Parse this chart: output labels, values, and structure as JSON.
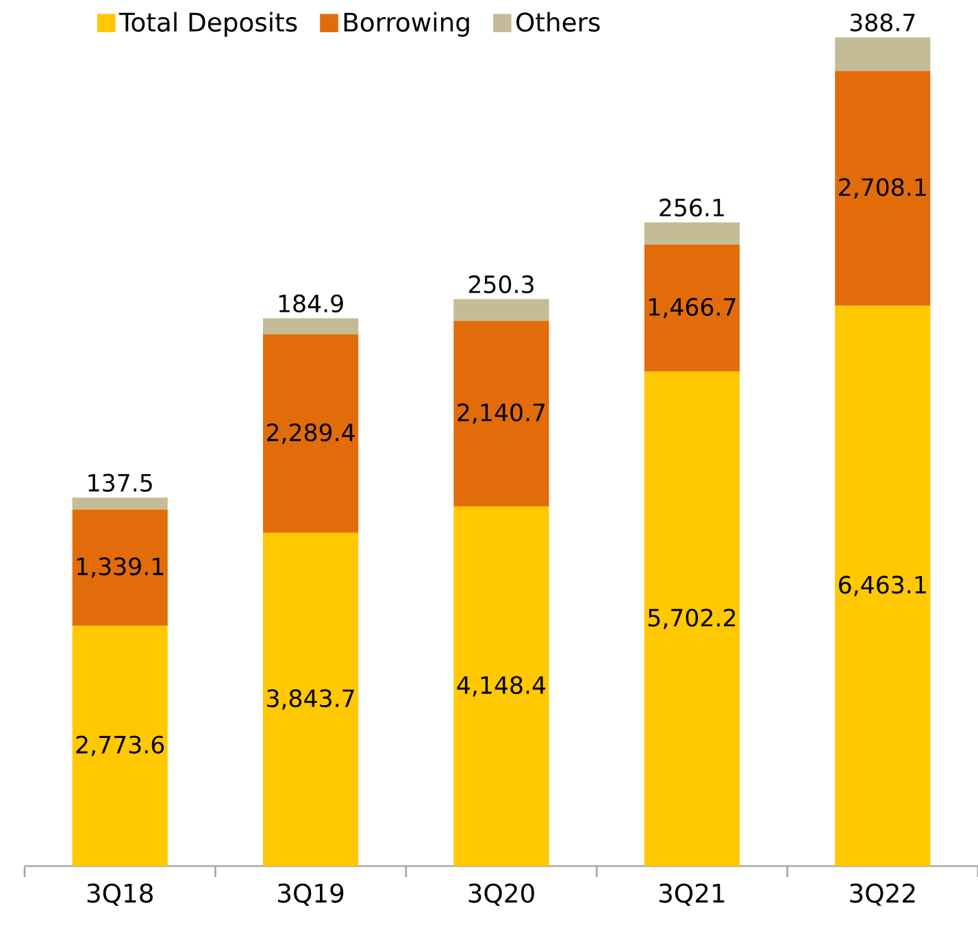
{
  "chart_data": {
    "type": "bar",
    "stacked": true,
    "legend": "top left",
    "categories": [
      "3Q18",
      "3Q19",
      "3Q20",
      "3Q21",
      "3Q22"
    ],
    "series": [
      {
        "name": "Total Deposits",
        "color": "#ffc800",
        "values": [
          2773.6,
          3843.7,
          4148.4,
          5702.2,
          6463.1
        ],
        "value_labels": [
          "2,773.6",
          "3,843.7",
          "4,148.4",
          "5,702.2",
          "6,463.1"
        ]
      },
      {
        "name": "Borrowing",
        "color": "#e36c0a",
        "values": [
          1339.1,
          2289.4,
          2140.7,
          1466.7,
          2708.1
        ],
        "value_labels": [
          "1,339.1",
          "2,289.4",
          "2,140.7",
          "1,466.7",
          "2,708.1"
        ]
      },
      {
        "name": "Others",
        "color": "#c4bc96",
        "values": [
          137.5,
          184.9,
          250.3,
          256.1,
          388.7
        ],
        "value_labels": [
          "137.5",
          "184.9",
          "250.3",
          "256.1",
          "388.7"
        ]
      }
    ]
  }
}
